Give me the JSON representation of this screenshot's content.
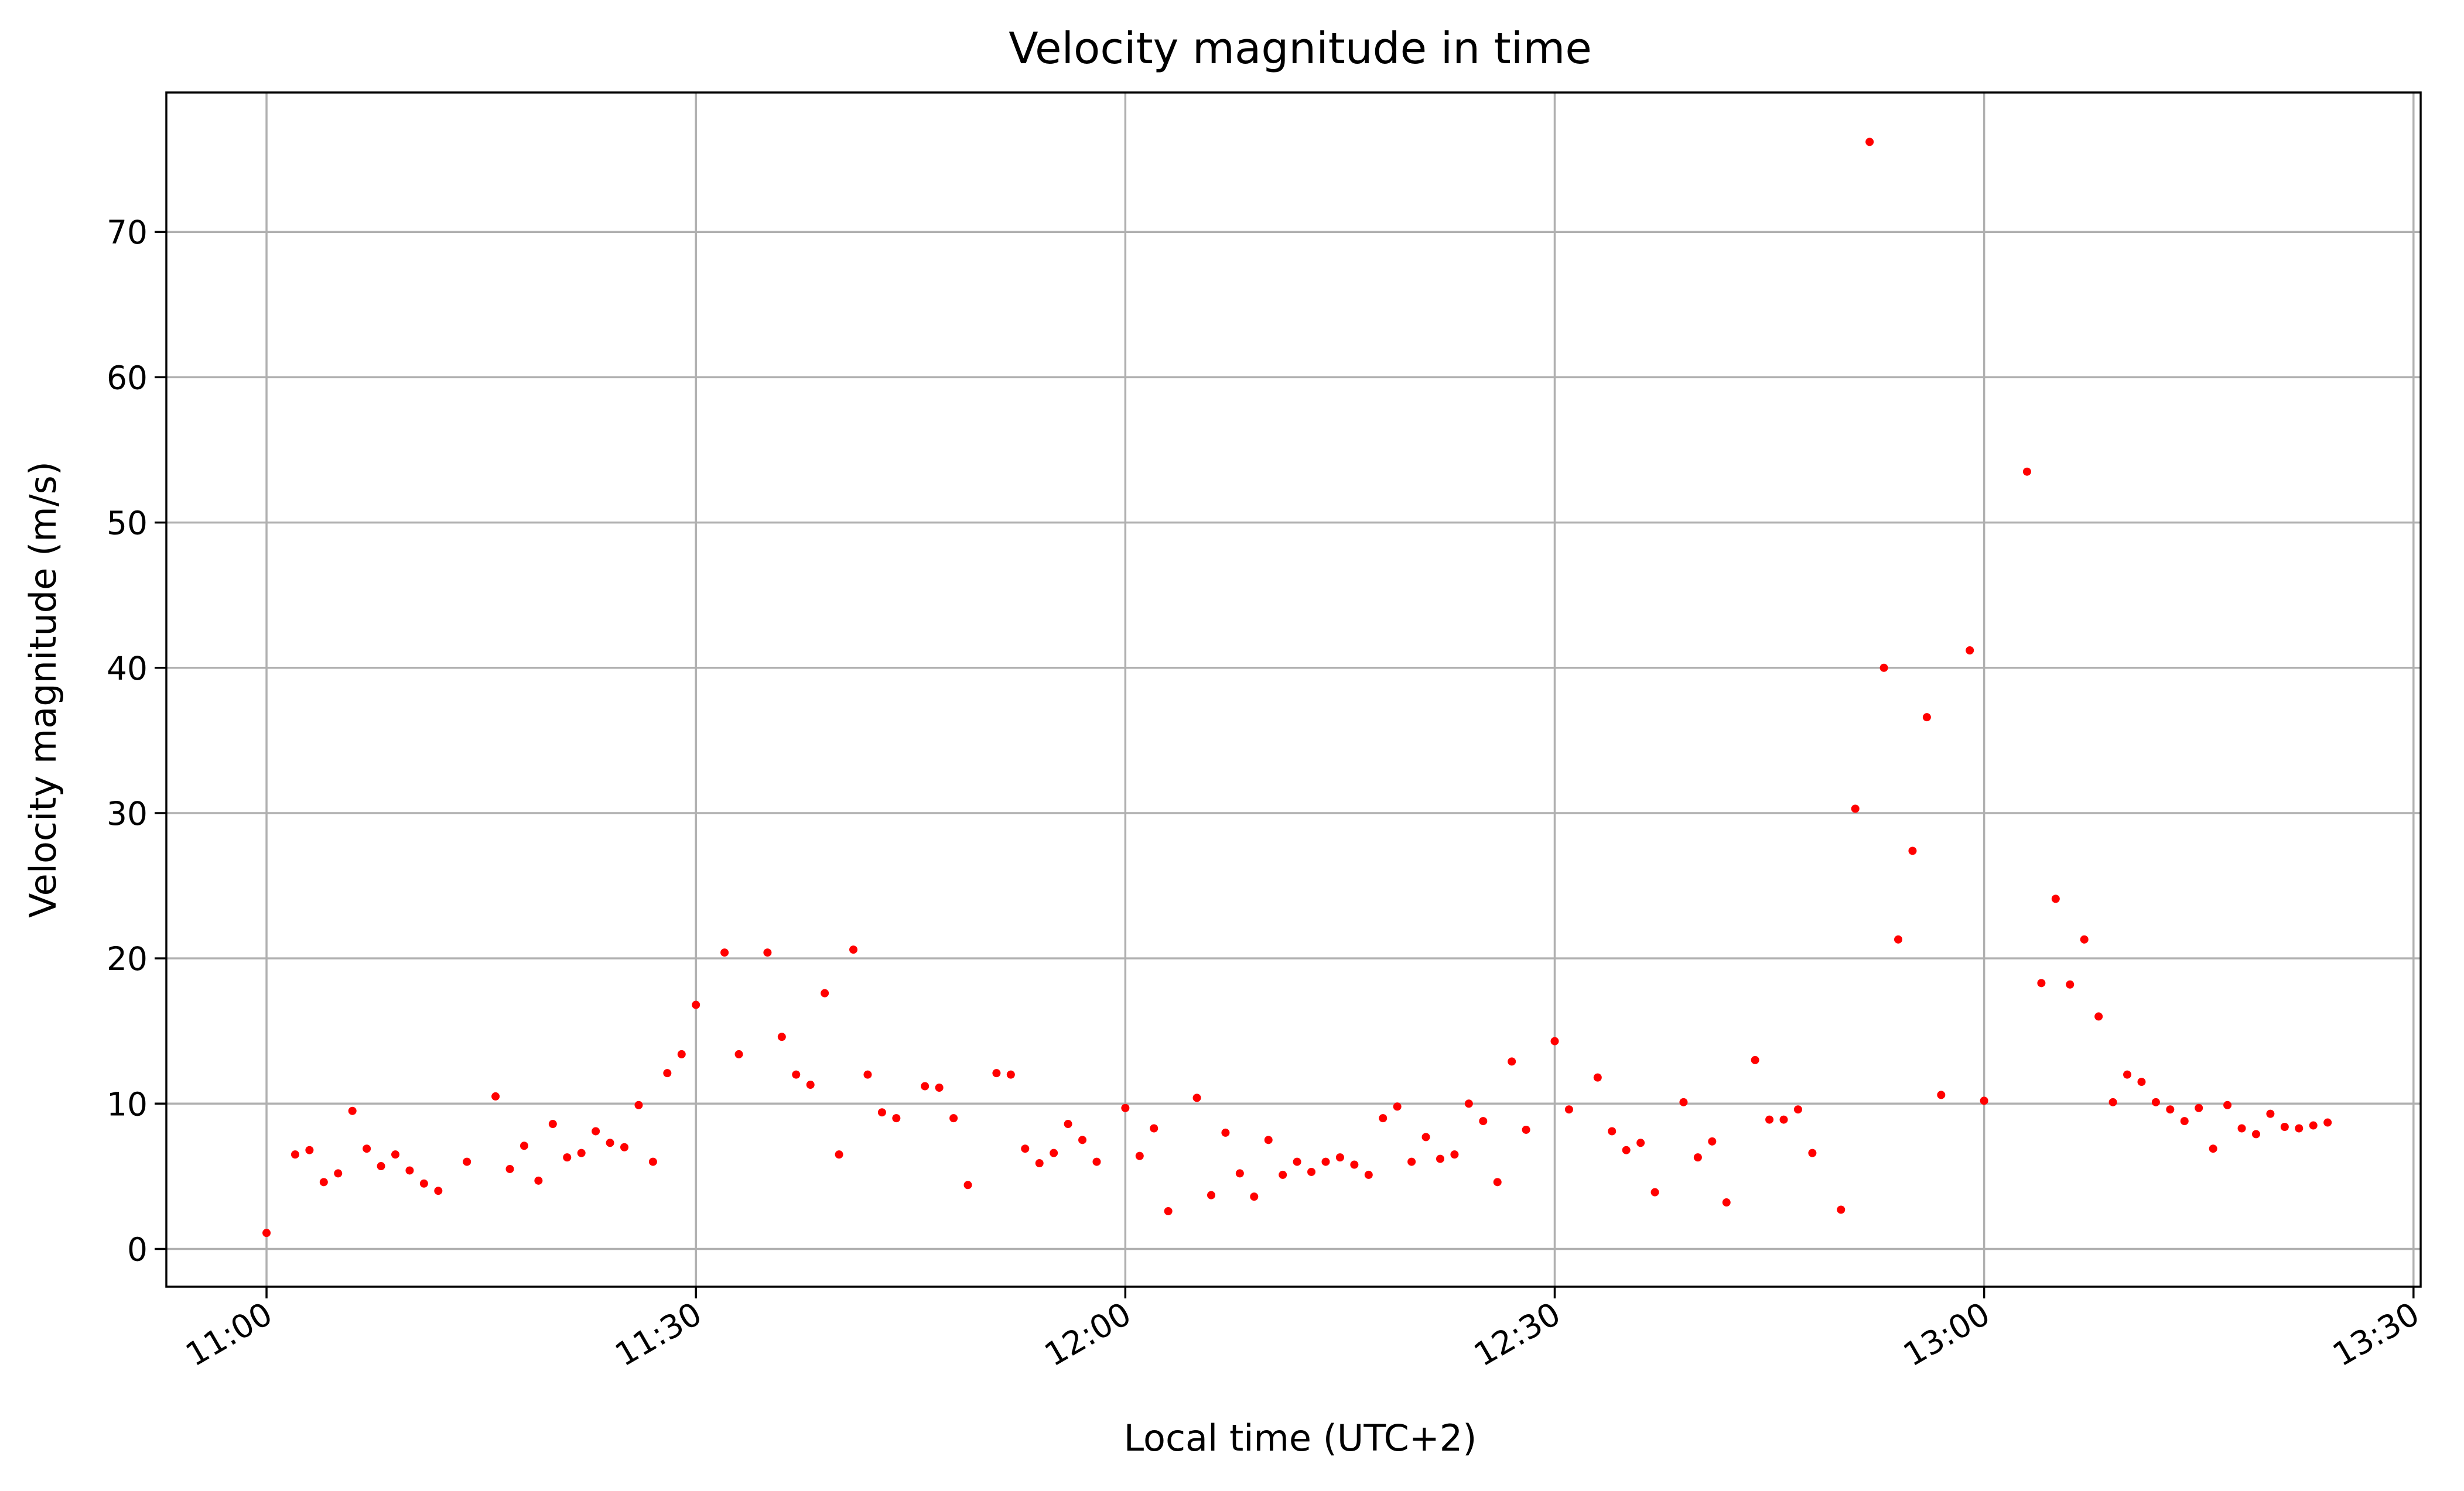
{
  "chart_data": {
    "type": "scatter",
    "title": "Velocity magnitude in time",
    "xlabel": "Local time (UTC+2)",
    "ylabel": "Velocity magnitude (m/s)",
    "xlim": [
      "10:53:00",
      "13:30:30"
    ],
    "ylim": [
      -2.6,
      79.6
    ],
    "x_ticks": [
      "11:00",
      "11:30",
      "12:00",
      "12:30",
      "13:00",
      "13:30"
    ],
    "y_ticks": [
      0,
      10,
      20,
      30,
      40,
      50,
      60,
      70
    ],
    "grid": true,
    "marker_color": "#ff0000",
    "series": [
      {
        "x": [
          "11:00",
          "11:02",
          "11:03",
          "11:04",
          "11:05",
          "11:06",
          "11:07",
          "11:08",
          "11:09",
          "11:10",
          "11:11",
          "11:12",
          "11:14",
          "11:16",
          "11:17",
          "11:18",
          "11:19",
          "11:20",
          "11:21",
          "11:22",
          "11:23",
          "11:24",
          "11:25",
          "11:26",
          "11:27",
          "11:28",
          "11:29",
          "11:30",
          "11:32",
          "11:33",
          "11:35",
          "11:36",
          "11:37",
          "11:38",
          "11:39",
          "11:40",
          "11:41",
          "11:42",
          "11:43",
          "11:44",
          "11:46",
          "11:47",
          "11:48",
          "11:49",
          "11:51",
          "11:52",
          "11:53",
          "11:54",
          "11:55",
          "11:56",
          "11:57",
          "11:58",
          "12:00",
          "12:01",
          "12:02",
          "12:03",
          "12:05",
          "12:06",
          "12:07",
          "12:08",
          "12:09",
          "12:10",
          "12:11",
          "12:12",
          "12:13",
          "12:14",
          "12:15",
          "12:16",
          "12:17",
          "12:18",
          "12:19",
          "12:20",
          "12:21",
          "12:22",
          "12:23",
          "12:24",
          "12:25",
          "12:26",
          "12:27",
          "12:28",
          "12:30",
          "12:31",
          "12:33",
          "12:34",
          "12:35",
          "12:36",
          "12:37",
          "12:39",
          "12:40",
          "12:41",
          "12:42",
          "12:44",
          "12:45",
          "12:46",
          "12:47",
          "12:48",
          "12:50",
          "12:51",
          "12:52",
          "12:53",
          "12:54",
          "12:55",
          "12:56",
          "12:57",
          "12:59",
          "13:00",
          "13:03",
          "13:04",
          "13:05",
          "13:06",
          "13:07",
          "13:08",
          "13:09",
          "13:10",
          "13:11",
          "13:12",
          "13:13",
          "13:14",
          "13:15",
          "13:16",
          "13:17",
          "13:18",
          "13:19",
          "13:20",
          "13:21",
          "13:22",
          "13:23",
          "13:24"
        ],
        "y": [
          1.1,
          6.5,
          6.8,
          4.6,
          5.2,
          9.5,
          6.9,
          5.7,
          6.5,
          5.4,
          4.5,
          4.0,
          6.0,
          10.5,
          5.5,
          7.1,
          4.7,
          8.6,
          6.3,
          6.6,
          8.1,
          7.3,
          7.0,
          9.9,
          6.0,
          12.1,
          13.4,
          16.8,
          20.4,
          13.4,
          20.4,
          14.6,
          12.0,
          11.3,
          17.6,
          6.5,
          20.6,
          12.0,
          9.4,
          9.0,
          11.2,
          11.1,
          9.0,
          4.4,
          12.1,
          12.0,
          6.9,
          5.9,
          6.6,
          8.6,
          7.5,
          6.0,
          9.7,
          6.4,
          8.3,
          2.6,
          10.4,
          3.7,
          8.0,
          5.2,
          3.6,
          7.5,
          5.1,
          6.0,
          5.3,
          6.0,
          6.3,
          5.8,
          5.1,
          9.0,
          9.8,
          6.0,
          7.7,
          6.2,
          6.5,
          10.0,
          8.8,
          4.6,
          12.9,
          8.2,
          14.3,
          9.6,
          11.8,
          8.1,
          6.8,
          7.3,
          3.9,
          10.1,
          6.3,
          7.4,
          3.2,
          13.0,
          8.9,
          8.9,
          9.6,
          6.6,
          2.7,
          30.3,
          76.2,
          40.0,
          21.3,
          27.4,
          36.6,
          10.6,
          41.2,
          10.2,
          53.5,
          18.3,
          24.1,
          18.2,
          21.3,
          16.0,
          10.1,
          12.0,
          11.5,
          10.1,
          9.6,
          8.8,
          9.7,
          6.9,
          9.9,
          8.3,
          7.9,
          9.3,
          8.4,
          8.3,
          8.5,
          8.7
        ]
      }
    ]
  }
}
